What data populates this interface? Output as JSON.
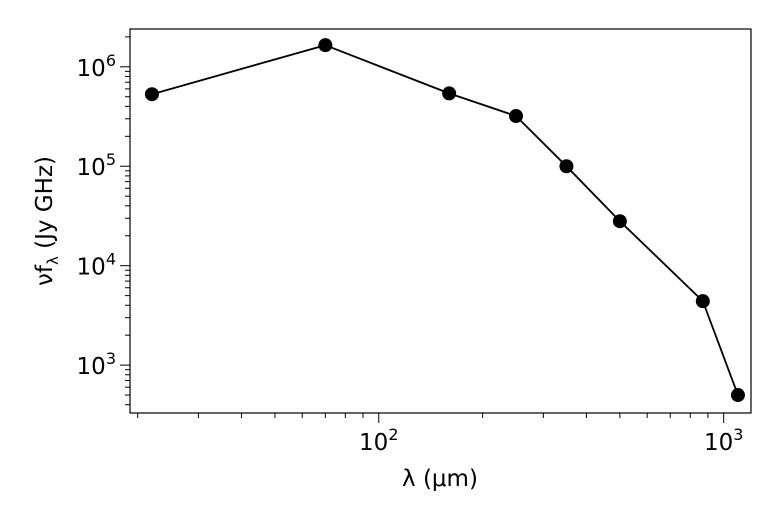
{
  "chart_data": {
    "type": "line",
    "title": "",
    "xlabel": "λ (μm)",
    "ylabel_main": "νf",
    "ylabel_sub": "λ",
    "ylabel_unit": " (Jy GHz)",
    "xscale": "log",
    "yscale": "log",
    "xlim": [
      19,
      1200
    ],
    "ylim": [
      330,
      2400000
    ],
    "grid": false,
    "legend": "none",
    "x_tick_labels": [
      {
        "value": 100,
        "base": "10",
        "exp": "2"
      },
      {
        "value": 1000,
        "base": "10",
        "exp": "3"
      }
    ],
    "y_tick_labels": [
      {
        "value": 1000,
        "base": "10",
        "exp": "3"
      },
      {
        "value": 10000,
        "base": "10",
        "exp": "4"
      },
      {
        "value": 100000,
        "base": "10",
        "exp": "5"
      },
      {
        "value": 1000000,
        "base": "10",
        "exp": "6"
      }
    ],
    "series": [
      {
        "x": [
          22,
          70,
          160,
          250,
          350,
          500,
          870,
          1100
        ],
        "y": [
          530000,
          1650000,
          540000,
          320000,
          100000,
          28000,
          4400,
          500
        ],
        "color": "#000000",
        "marker": "circle"
      }
    ]
  }
}
